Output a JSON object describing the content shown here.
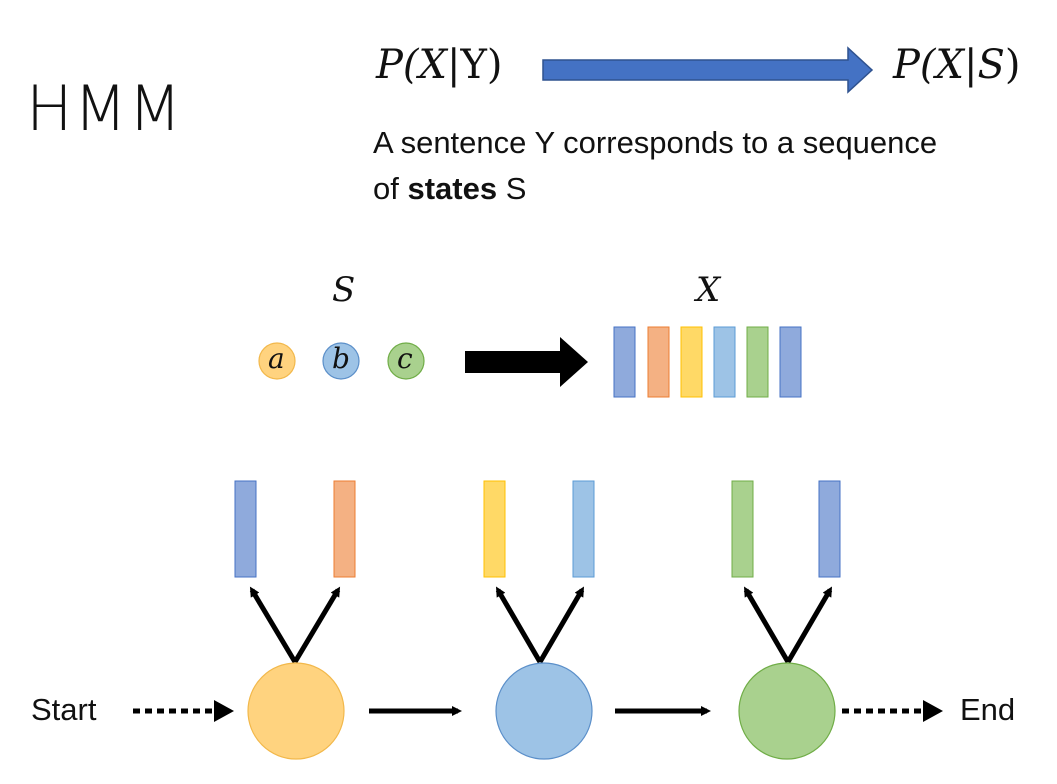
{
  "title": "HMM",
  "formula": {
    "left_prefix": "P(",
    "left_var": "X",
    "left_bar": "|",
    "left_given": "Y",
    "left_close": ")",
    "right_prefix": "P(",
    "right_var": "X",
    "right_bar": "|",
    "right_given": "S",
    "right_close": ")"
  },
  "caption": {
    "line1": "A sentence Y corresponds to a sequence",
    "line2_prefix": "of ",
    "line2_bold": "states",
    "line2_suffix": " S"
  },
  "states_label": "S",
  "observations_label": "X",
  "state_symbols": [
    "a",
    "b",
    "c"
  ],
  "chain": {
    "start": "Start",
    "end": "End"
  },
  "colors": {
    "orange": "#ffd37f",
    "blue": "#9dc3e6",
    "green": "#a9d18e",
    "dark_blue": "#8faadc",
    "red": "#f4b183",
    "arrow_blue": "#4472c4"
  }
}
